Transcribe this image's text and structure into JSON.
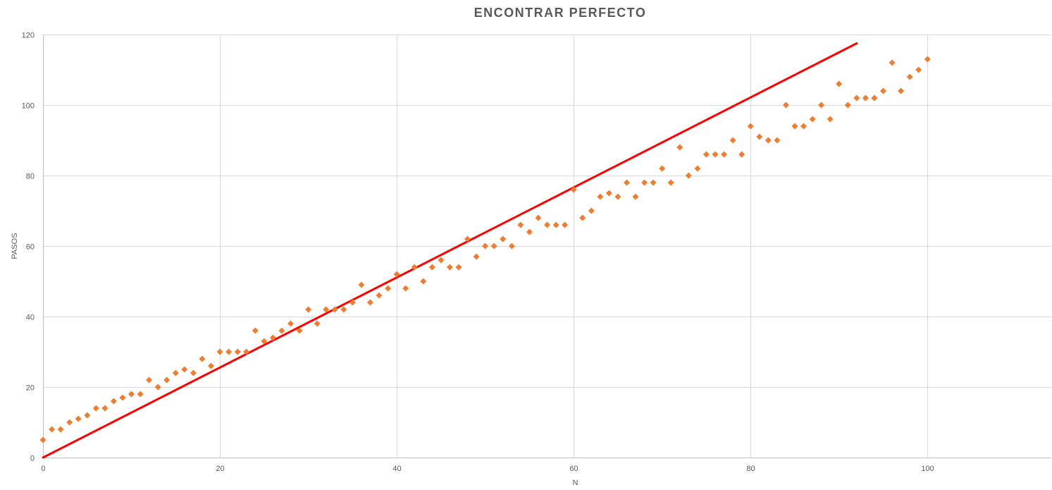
{
  "chart_data": {
    "type": "scatter",
    "title": "ENCONTRAR PERFECTO",
    "xlabel": "N",
    "ylabel": "PASOS",
    "xlim": [
      0,
      114
    ],
    "ylim": [
      0,
      120
    ],
    "x_ticks": [
      0,
      20,
      40,
      60,
      80,
      100
    ],
    "y_ticks": [
      0,
      20,
      40,
      60,
      80,
      100,
      120
    ],
    "grid": true,
    "legend": "none",
    "colors": {
      "points": "#ed7d31",
      "trendline": "#ff0000",
      "grid": "#d9d9d9",
      "axis": "#bfbfbf",
      "text": "#595959"
    },
    "series": [
      {
        "type": "scatter",
        "marker": "diamond",
        "x": [
          0,
          1,
          2,
          3,
          4,
          5,
          6,
          7,
          8,
          9,
          10,
          11,
          12,
          13,
          14,
          15,
          16,
          17,
          18,
          19,
          20,
          21,
          22,
          23,
          24,
          25,
          26,
          27,
          28,
          29,
          30,
          31,
          32,
          33,
          34,
          35,
          36,
          37,
          38,
          39,
          40,
          41,
          42,
          43,
          44,
          45,
          46,
          47,
          48,
          49,
          50,
          51,
          52,
          53,
          54,
          55,
          56,
          57,
          58,
          59,
          60,
          61,
          62,
          63,
          64,
          65,
          66,
          67,
          68,
          69,
          70,
          71,
          72,
          73,
          74,
          75,
          76,
          77,
          78,
          79,
          80,
          81,
          82,
          83,
          84,
          85,
          86,
          87,
          88,
          89,
          90,
          91,
          92,
          93,
          94,
          95,
          96,
          97,
          98,
          99,
          100
        ],
        "y": [
          5,
          8,
          8,
          10,
          11,
          12,
          14,
          14,
          16,
          17,
          18,
          18,
          22,
          20,
          22,
          24,
          25,
          24,
          28,
          26,
          30,
          30,
          30,
          30,
          36,
          33,
          34,
          36,
          38,
          36,
          42,
          38,
          42,
          42,
          42,
          44,
          49,
          44,
          46,
          48,
          52,
          48,
          54,
          50,
          54,
          56,
          54,
          54,
          62,
          57,
          60,
          60,
          62,
          60,
          66,
          64,
          68,
          66,
          66,
          66,
          76,
          68,
          70,
          74,
          75,
          74,
          78,
          74,
          78,
          78,
          82,
          78,
          88,
          80,
          82,
          86,
          86,
          86,
          90,
          86,
          94,
          91,
          90,
          90,
          100,
          94,
          94,
          96,
          100,
          96,
          106,
          100,
          102,
          102,
          102,
          104,
          112,
          104,
          108,
          110,
          113
        ]
      },
      {
        "type": "line",
        "x": [
          0,
          92
        ],
        "y": [
          0,
          117.5
        ]
      }
    ]
  }
}
